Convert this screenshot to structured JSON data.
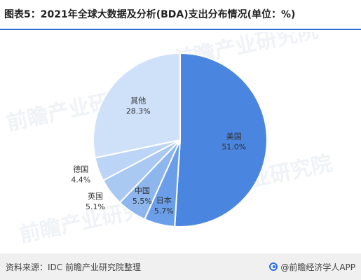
{
  "chart_data": {
    "type": "pie",
    "title": "图表5：2021年全球大数据及分析(BDA)支出分布情况(单位：%)",
    "slices": [
      {
        "label": "美国",
        "value": 51.0,
        "value_label": "51.0%",
        "color": "#4a86e0"
      },
      {
        "label": "日本",
        "value": 5.7,
        "value_label": "5.7%",
        "color": "#6a9ee8"
      },
      {
        "label": "中国",
        "value": 5.5,
        "value_label": "5.5%",
        "color": "#8db5ee"
      },
      {
        "label": "英国",
        "value": 5.1,
        "value_label": "5.1%",
        "color": "#a9c8f2"
      },
      {
        "label": "德国",
        "value": 4.4,
        "value_label": "4.4%",
        "color": "#bcd4f5"
      },
      {
        "label": "其他",
        "value": 28.3,
        "value_label": "28.3%",
        "color": "#cfe1f9"
      }
    ]
  },
  "footer": {
    "source": "资料来源：IDC 前瞻产业研究院整理",
    "brand": "@前瞻经济学人APP"
  },
  "watermark": {
    "text": "前瞻产业研究院"
  }
}
